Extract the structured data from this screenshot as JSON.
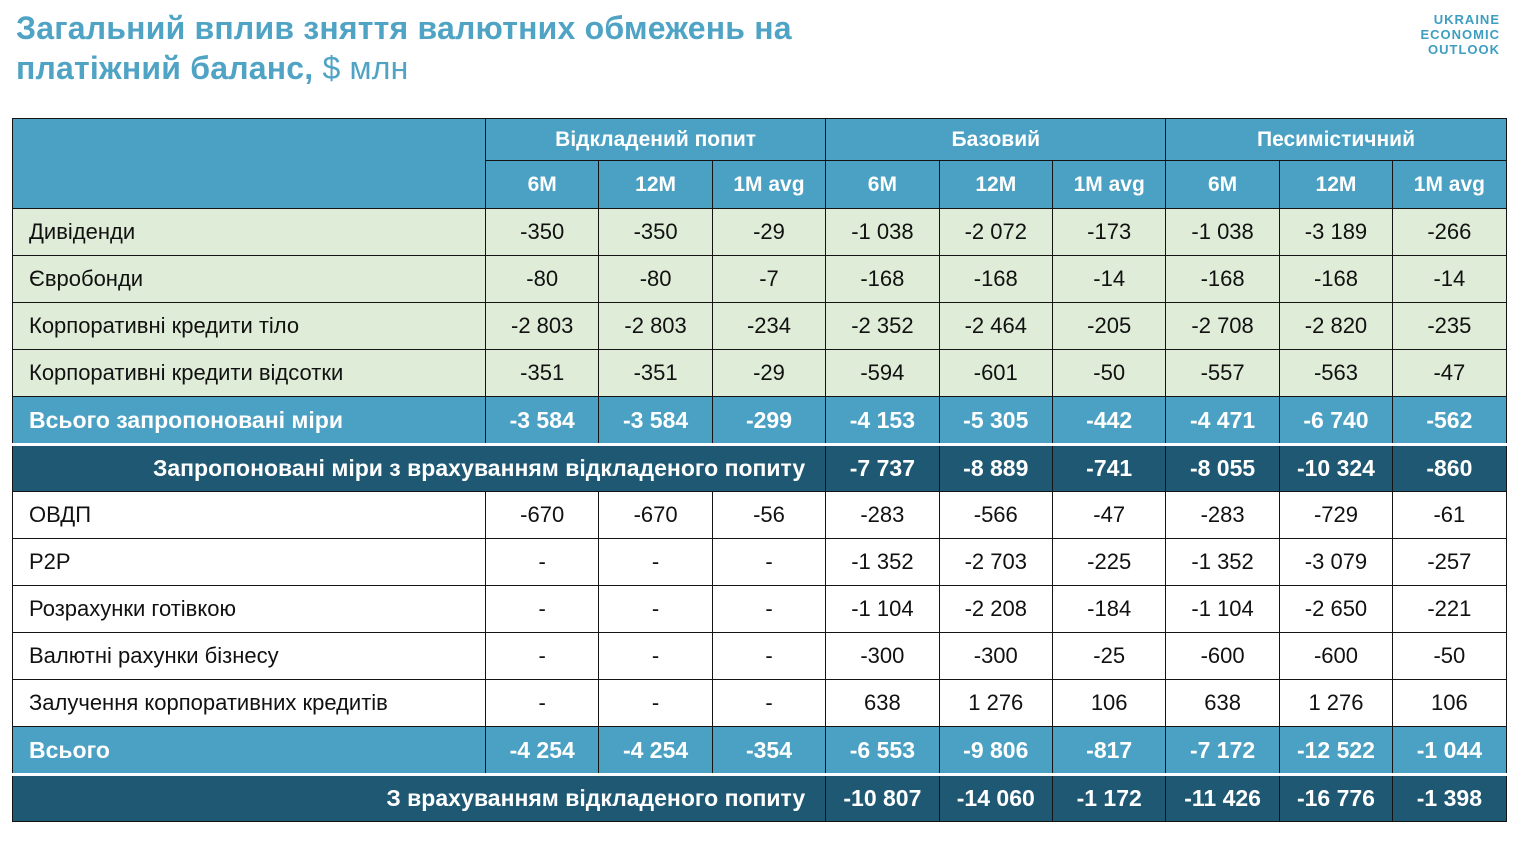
{
  "title": {
    "line1": "Загальний вплив зняття валютних обмежень на",
    "line2_bold": "платіжний баланс,",
    "line2_unit": "$ млн"
  },
  "logo": {
    "line1": "UKRAINE",
    "line2": "ECONOMIC",
    "line3": "OUTLOOK"
  },
  "colors": {
    "header_teal": "#4AA1C3",
    "dark_teal": "#1F5873",
    "light_green": "#DFECD8",
    "row_white": "#FFFFFF",
    "title_teal": "#4FA3C4",
    "logo_teal": "#3E9EC0",
    "border": "#141414"
  },
  "chart_data": {
    "type": "table",
    "title": "Загальний вплив зняття валютних обмежень на платіжний баланс, $ млн",
    "column_groups": [
      "Відкладений попит",
      "Базовий",
      "Песимістичний"
    ],
    "columns": [
      "6M",
      "12M",
      "1M avg",
      "6M",
      "12M",
      "1M avg",
      "6M",
      "12M",
      "1M avg"
    ],
    "rows": [
      {
        "type": "green",
        "label": "Дивіденди",
        "values": [
          "-350",
          "-350",
          "-29",
          "-1 038",
          "-2 072",
          "-173",
          "-1 038",
          "-3 189",
          "-266"
        ]
      },
      {
        "type": "green",
        "label": "Євробонди",
        "values": [
          "-80",
          "-80",
          "-7",
          "-168",
          "-168",
          "-14",
          "-168",
          "-168",
          "-14"
        ]
      },
      {
        "type": "green",
        "label": "Корпоративні кредити тіло",
        "values": [
          "-2 803",
          "-2 803",
          "-234",
          "-2 352",
          "-2 464",
          "-205",
          "-2 708",
          "-2 820",
          "-235"
        ]
      },
      {
        "type": "green",
        "label": "Корпоративні кредити відсотки",
        "values": [
          "-351",
          "-351",
          "-29",
          "-594",
          "-601",
          "-50",
          "-557",
          "-563",
          "-47"
        ]
      },
      {
        "type": "total",
        "label": "Всього запропоновані міри",
        "values": [
          "-3 584",
          "-3 584",
          "-299",
          "-4 153",
          "-5 305",
          "-442",
          "-4 471",
          "-6 740",
          "-562"
        ]
      },
      {
        "type": "dark",
        "label": "Запропоновані міри з врахуванням відкладеного попиту",
        "values": [
          "-7 737",
          "-8 889",
          "-741",
          "-8 055",
          "-10 324",
          "-860"
        ]
      },
      {
        "type": "white",
        "label": "ОВДП",
        "values": [
          "-670",
          "-670",
          "-56",
          "-283",
          "-566",
          "-47",
          "-283",
          "-729",
          "-61"
        ]
      },
      {
        "type": "white",
        "label": "P2P",
        "values": [
          "-",
          "-",
          "-",
          "-1 352",
          "-2 703",
          "-225",
          "-1 352",
          "-3 079",
          "-257"
        ]
      },
      {
        "type": "white",
        "label": "Розрахунки готівкою",
        "values": [
          "-",
          "-",
          "-",
          "-1 104",
          "-2 208",
          "-184",
          "-1 104",
          "-2 650",
          "-221"
        ]
      },
      {
        "type": "white",
        "label": "Валютні рахунки бізнесу",
        "values": [
          "-",
          "-",
          "-",
          "-300",
          "-300",
          "-25",
          "-600",
          "-600",
          "-50"
        ]
      },
      {
        "type": "white",
        "label": "Залучення корпоративних кредитів",
        "values": [
          "-",
          "-",
          "-",
          "638",
          "1 276",
          "106",
          "638",
          "1 276",
          "106"
        ]
      },
      {
        "type": "total",
        "label": "Всього",
        "values": [
          "-4 254",
          "-4 254",
          "-354",
          "-6 553",
          "-9 806",
          "-817",
          "-7 172",
          "-12 522",
          "-1 044"
        ]
      },
      {
        "type": "dark",
        "label": "З врахуванням відкладеного попиту",
        "values": [
          "-10 807",
          "-14 060",
          "-1 172",
          "-11 426",
          "-16 776",
          "-1 398"
        ]
      }
    ]
  }
}
